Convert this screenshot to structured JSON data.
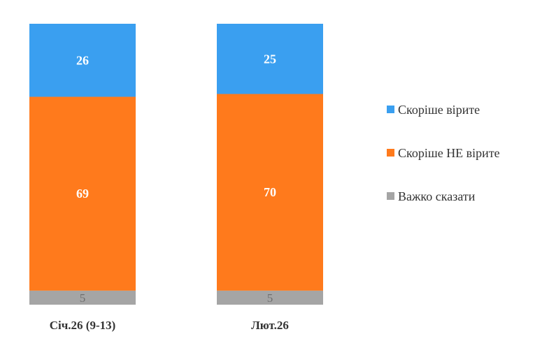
{
  "chart_data": {
    "type": "bar",
    "stacked": true,
    "categories": [
      "Січ.26 (9-13)",
      "Лют.26"
    ],
    "series": [
      {
        "name": "Важко сказати",
        "values": [
          5,
          5
        ],
        "color": "#a5a5a5"
      },
      {
        "name": "Скоріше НЕ вірите",
        "values": [
          69,
          70
        ],
        "color": "#ff7a1c"
      },
      {
        "name": "Скоріше вірите",
        "values": [
          26,
          25
        ],
        "color": "#3a9ff0"
      }
    ],
    "legend_order": [
      "Скоріше вірите",
      "Скоріше НЕ вірите",
      "Важко сказати"
    ],
    "legend_position": "right",
    "ylim": [
      0,
      100
    ],
    "grid": false,
    "title": "",
    "xlabel": "",
    "ylabel": ""
  }
}
